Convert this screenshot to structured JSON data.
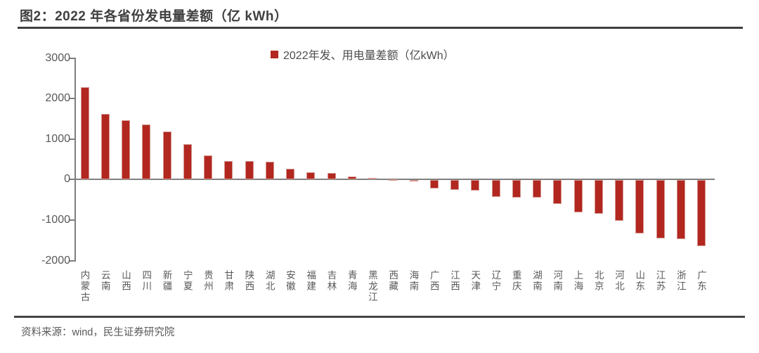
{
  "title": "图2：2022 年各省份发电量差额（亿 kWh）",
  "legend": {
    "label": "2022年发、用电量差额（亿kWh）",
    "marker": "red-square"
  },
  "source": "资料来源：wind，民生证券研究院",
  "colors": {
    "bar": "#b2271f",
    "bar_border": "#d4958e",
    "axis": "#7f7f7f",
    "title_text": "#3f3f3f",
    "tick_text": "#595959",
    "rule": "#3f3f3f"
  },
  "chart_data": {
    "type": "bar",
    "title": "2022年各省份发电量差额（亿 kWh）",
    "xlabel": "",
    "ylabel": "",
    "ylim": [
      -2000,
      3000
    ],
    "yticks": [
      3000,
      2000,
      1000,
      0,
      -1000,
      -2000
    ],
    "grid": false,
    "legend_position": "top-center",
    "legend_entries": [
      "2022年发、用电量差额（亿kWh）"
    ],
    "categories": [
      "内蒙古",
      "云南",
      "山西",
      "四川",
      "新疆",
      "宁夏",
      "贵州",
      "甘肃",
      "陕西",
      "湖北",
      "安徽",
      "福建",
      "吉林",
      "青海",
      "黑龙江",
      "西藏",
      "海南",
      "广西",
      "江西",
      "天津",
      "辽宁",
      "重庆",
      "湖南",
      "河南",
      "上海",
      "北京",
      "河北",
      "山东",
      "江苏",
      "浙江",
      "广东"
    ],
    "values": [
      2280,
      1620,
      1465,
      1365,
      1190,
      865,
      590,
      465,
      455,
      445,
      270,
      180,
      160,
      80,
      45,
      10,
      -10,
      -210,
      -240,
      -260,
      -415,
      -425,
      -435,
      -590,
      -790,
      -825,
      -995,
      -1310,
      -1435,
      -1445,
      -1630
    ]
  }
}
